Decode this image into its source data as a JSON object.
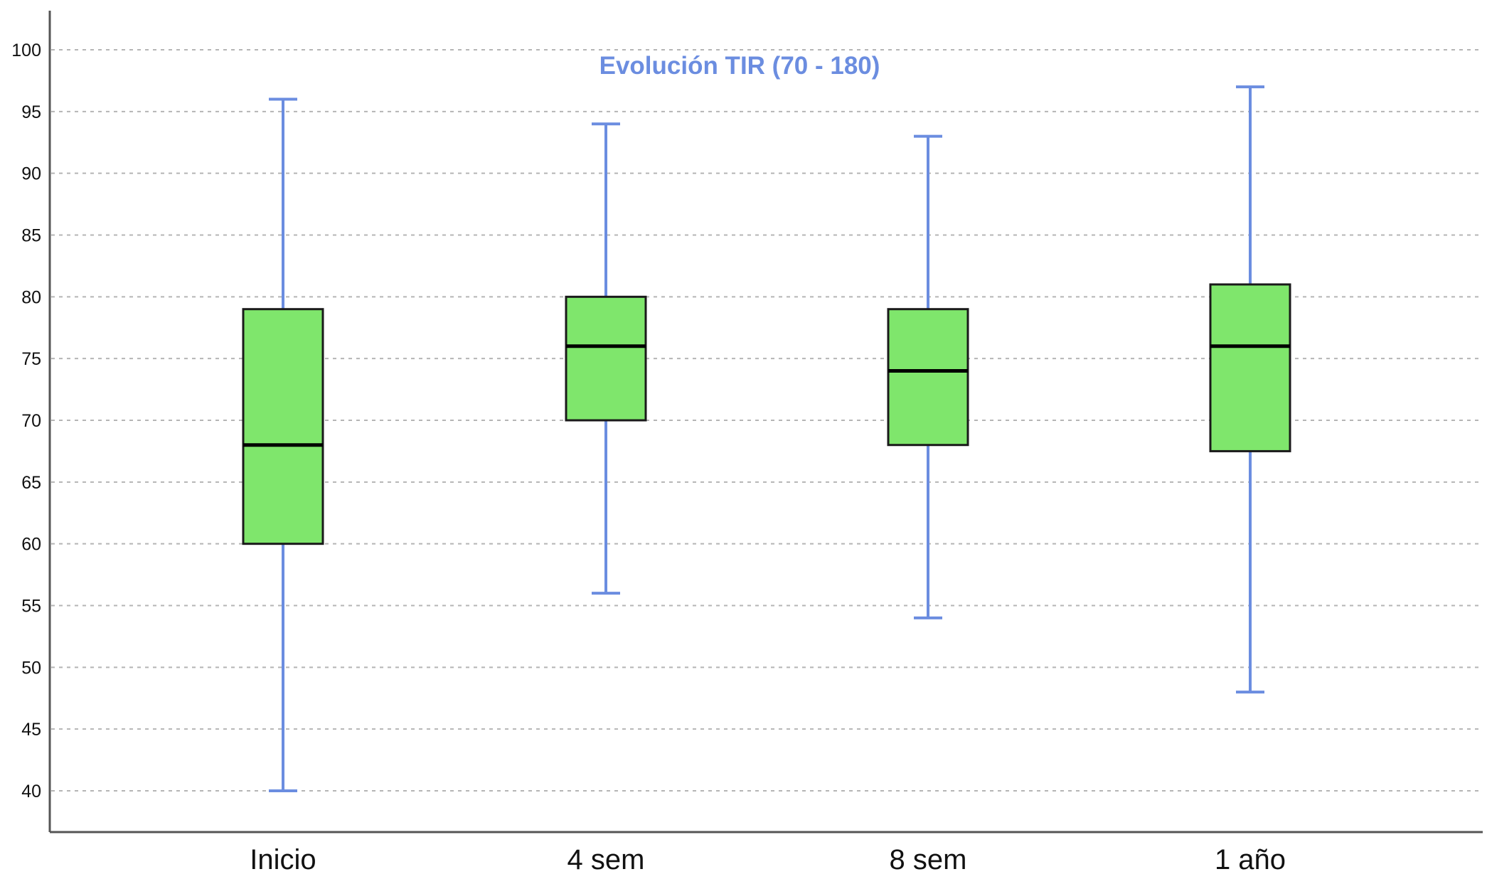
{
  "chart_data": {
    "type": "boxplot",
    "title": "Evolución TIR (70 - 180)",
    "xlabel": "",
    "ylabel": "",
    "ylim": [
      40,
      100
    ],
    "yticks": [
      40,
      45,
      50,
      55,
      60,
      65,
      70,
      75,
      80,
      85,
      90,
      95,
      100
    ],
    "grid": true,
    "categories": [
      "Inicio",
      "4 sem",
      "8 sem",
      "1 año"
    ],
    "boxes": [
      {
        "category": "Inicio",
        "min": 40,
        "q1": 60,
        "median": 68,
        "q3": 79,
        "max": 96
      },
      {
        "category": "4 sem",
        "min": 56,
        "q1": 70,
        "median": 76,
        "q3": 80,
        "max": 94
      },
      {
        "category": "8 sem",
        "min": 54,
        "q1": 68,
        "median": 74,
        "q3": 79,
        "max": 93
      },
      {
        "category": "1 año",
        "min": 48,
        "q1": 67.5,
        "median": 76,
        "q3": 81,
        "max": 97
      }
    ],
    "colors": {
      "box_fill": "#7fe66c",
      "box_stroke": "#1a1a1a",
      "median": "#000000",
      "whisker": "#6b8de0",
      "title": "#6b8de0",
      "grid": "#b5b5b5",
      "axis": "#555555"
    }
  }
}
